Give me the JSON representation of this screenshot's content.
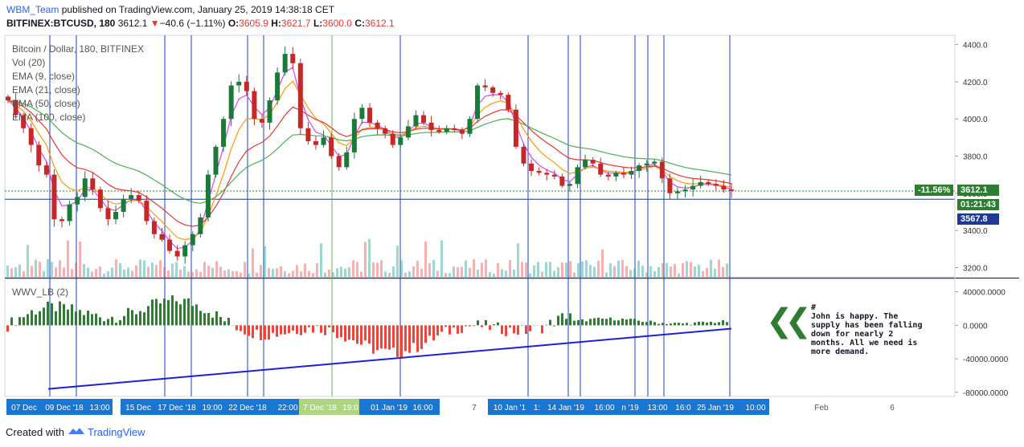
{
  "header": {
    "user": "WBM_Team",
    "published": "published on TradingView.com, January 25, 2019 14:38:18 CET",
    "symbol": "BITFINEX:BTCUSD, 180",
    "last": "3612.1",
    "arrow": "▼",
    "change": "−40.6 (−1.11%)",
    "o_label": "O:",
    "o": "3605.9",
    "h_label": "H:",
    "h": "3621.7",
    "l_label": "L:",
    "l": "3600.0",
    "c_label": "C:",
    "c": "3612.1"
  },
  "legend": {
    "title": "Bitcoin / Dollar, 180, BITFINEX",
    "vol": "Vol (20)",
    "ema9": "EMA (9, close)",
    "ema21": "EMA (21, close)",
    "ema50": "EMA (50, close)",
    "ema100": "EMA (100, close)",
    "sub": "WWV_LB (2)"
  },
  "price_tags": {
    "pct": "-11.56%",
    "last": "3612.1",
    "countdown": "01:21:43",
    "cross": "3567.8"
  },
  "note": {
    "hash": "#",
    "text": "John is happy. The supply has been falling down for nearly 2 months. All we need is more demand.",
    "icon": "double-chevron-left-icon"
  },
  "footer": {
    "created": "Created with",
    "brand": "TradingView"
  },
  "colors": {
    "up": "#26a69a",
    "down": "#ef5350",
    "candle_up": "#1b7a3a",
    "candle_down": "#c62828",
    "ema9": "#e040fb",
    "ema21": "#ff9800",
    "ema50": "#e53935",
    "ema100": "#4caf50",
    "vline": "#1e40c8",
    "trend": "#1f1fd6",
    "axis_tag": "#1976d2",
    "green_tag": "#2e7d32"
  },
  "chart_data": [
    {
      "type": "candlestick",
      "title": "Bitcoin / Dollar, 180, BITFINEX",
      "ylim": [
        3150,
        4450
      ],
      "yticks": [
        3200,
        3400,
        3600,
        3800,
        4000,
        4200,
        4400
      ],
      "ytick_labels": [
        "3200.0",
        "3400.0",
        "3600.0",
        "3800.0",
        "4000.0",
        "4200.0",
        "4400.0"
      ],
      "xticks": [
        "07 Dec",
        "09 Dec '18",
        "13:00",
        "15 Dec",
        "17 Dec '18",
        "19:00",
        "22 Dec '18",
        "22:00",
        "7 Dec '18",
        "19:0",
        "01 Jan '19",
        "16:00",
        "7",
        "10 Jan '1",
        "1:",
        "14 Jan '19",
        "16:00",
        "n '19",
        "13:00",
        "16:0",
        "25 Jan '19",
        "10:00",
        "Feb",
        "6"
      ],
      "close_approx": [
        4100,
        4020,
        3950,
        3860,
        3750,
        3700,
        3460,
        3450,
        3540,
        3580,
        3680,
        3620,
        3520,
        3460,
        3500,
        3570,
        3590,
        3560,
        3450,
        3380,
        3350,
        3290,
        3260,
        3320,
        3380,
        3470,
        3700,
        3850,
        4000,
        4180,
        4200,
        4150,
        4000,
        3980,
        4100,
        4250,
        4350,
        4300,
        3950,
        3880,
        3860,
        3900,
        3800,
        3740,
        3820,
        4000,
        4060,
        3980,
        3950,
        3920,
        3860,
        3900,
        3960,
        4020,
        3980,
        3940,
        3930,
        3950,
        3940,
        3920,
        4000,
        4180,
        4170,
        4140,
        4130,
        4050,
        3850,
        3760,
        3720,
        3710,
        3700,
        3690,
        3640,
        3650,
        3740,
        3780,
        3760,
        3700,
        3690,
        3710,
        3700,
        3720,
        3750,
        3760,
        3770,
        3680,
        3600,
        3610,
        3620,
        3640,
        3660,
        3650,
        3640,
        3620,
        3612
      ]
    },
    {
      "type": "bar",
      "title": "WWV_LB (2)",
      "ylim": [
        -85000,
        55000
      ],
      "yticks": [
        -80000,
        -40000,
        0,
        40000
      ],
      "ytick_labels": [
        "-80000.0000",
        "-40000.0000",
        "0.0000",
        "40000.0000"
      ],
      "trendline_values": [
        -76000,
        -4000
      ]
    }
  ]
}
